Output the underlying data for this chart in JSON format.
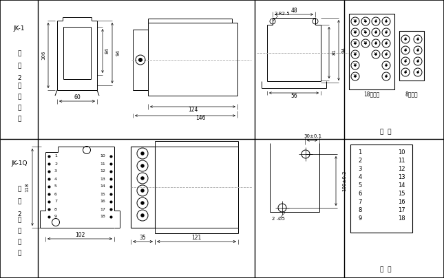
{
  "bg": "#ffffff",
  "lc": "#000000",
  "top_jk": "JK-1",
  "bot_jk": "JK-1Q",
  "fu_chars": [
    "附",
    "圖",
    "2"
  ],
  "top_banjie": [
    "板",
    "後",
    "接",
    "線"
  ],
  "bot_banjie": [
    "板",
    "前",
    "接",
    "線"
  ],
  "label_back": "背  視",
  "label_front": "正  視",
  "label_18pt": "18點端子",
  "label_8pt": "8點端子",
  "dim_106": "106",
  "dim_84": "84",
  "dim_94": "94",
  "dim_60": "60",
  "dim_124": "124",
  "dim_146": "146",
  "dim_48": "48",
  "dim_81": "81",
  "dim_56": "56",
  "label_2r25": "2-R2.5",
  "dim_118": "118",
  "dim_102": "102",
  "dim_35": "35",
  "dim_121": "121",
  "dim_30": "30±0.1",
  "dim_100": "100±0.2",
  "dim_2p5": "2 -Ø5"
}
